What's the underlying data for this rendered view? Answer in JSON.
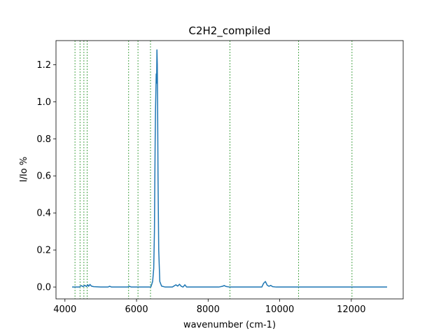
{
  "chart_data": {
    "type": "line",
    "title": "C2H2_compiled",
    "xlabel": "wavenumber (cm-1)",
    "ylabel": "I/Io %",
    "xlim": [
      3750,
      13450
    ],
    "ylim": [
      -0.064,
      1.33
    ],
    "x_ticks": [
      4000,
      6000,
      8000,
      10000,
      12000
    ],
    "x_tick_labels": [
      "4000",
      "6000",
      "8000",
      "10000",
      "12000"
    ],
    "y_ticks": [
      0.0,
      0.2,
      0.4,
      0.6,
      0.8,
      1.0,
      1.2
    ],
    "y_tick_labels": [
      "0.0",
      "0.2",
      "0.4",
      "0.6",
      "0.8",
      "1.0",
      "1.2"
    ],
    "grid": false,
    "line_color": "#1f77b4",
    "marker_line_color": "#008000",
    "vertical_markers": [
      4280,
      4420,
      4530,
      4620,
      5780,
      6040,
      6390,
      8610,
      10530,
      12020
    ],
    "series": [
      {
        "x": [
          4200,
          4400,
          4460,
          4500,
          4560,
          4600,
          4640,
          4660,
          4700,
          4740,
          4800,
          5000,
          5200,
          5250,
          5300,
          5500,
          5750,
          5800,
          5850,
          6000,
          6400,
          6450,
          6480,
          6500,
          6510,
          6520,
          6530,
          6540,
          6550,
          6560,
          6570,
          6580,
          6590,
          6600,
          6620,
          6650,
          6700,
          6800,
          7000,
          7100,
          7150,
          7200,
          7250,
          7300,
          7350,
          7400,
          7500,
          7800,
          8000,
          8300,
          8400,
          8450,
          8500,
          8600,
          9000,
          9500,
          9550,
          9600,
          9650,
          9700,
          9750,
          9800,
          9900,
          10200,
          10500,
          11000,
          12000,
          13000
        ],
        "y": [
          0.0,
          0.0,
          0.008,
          0.002,
          0.009,
          0.003,
          0.012,
          0.004,
          0.014,
          0.005,
          0.002,
          0.0,
          0.0,
          0.004,
          0.0,
          0.0,
          0.0,
          0.004,
          0.0,
          0.0,
          0.0,
          0.03,
          0.1,
          0.3,
          0.55,
          0.78,
          0.95,
          1.05,
          1.15,
          1.1,
          1.28,
          1.2,
          0.95,
          0.6,
          0.2,
          0.03,
          0.005,
          0.0,
          0.0,
          0.012,
          0.005,
          0.015,
          0.004,
          0.0,
          0.012,
          0.0,
          0.0,
          0.0,
          0.0,
          0.0,
          0.004,
          0.008,
          0.003,
          0.0,
          0.0,
          0.0,
          0.02,
          0.03,
          0.01,
          0.004,
          0.009,
          0.002,
          0.0,
          0.0,
          0.0,
          0.0,
          0.0,
          0.0
        ]
      }
    ]
  }
}
